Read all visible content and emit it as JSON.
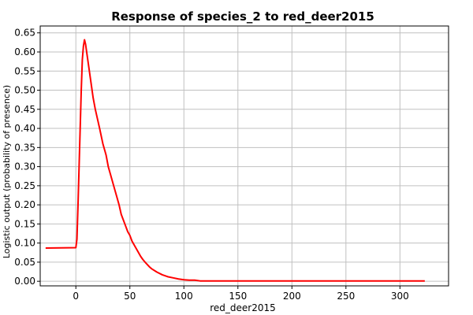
{
  "chart_data": {
    "type": "line",
    "title": "Response of species_2 to red_deer2015",
    "xlabel": "red_deer2015",
    "ylabel": "Logistic output (probability of presence)",
    "xlim": [
      -33,
      345
    ],
    "ylim": [
      -0.012,
      0.668
    ],
    "xticks": [
      0,
      50,
      100,
      150,
      200,
      250,
      300
    ],
    "yticks": [
      0.0,
      0.05,
      0.1,
      0.15,
      0.2,
      0.25,
      0.3,
      0.35,
      0.4,
      0.45,
      0.5,
      0.55,
      0.6,
      0.65
    ],
    "grid": true,
    "series": [
      {
        "color": "#ff0000",
        "x": [
          -28,
          0,
          1,
          2,
          3,
          4,
          5,
          6,
          7,
          8,
          9,
          10,
          12,
          14,
          16,
          18,
          20,
          22,
          25,
          28,
          30,
          32,
          35,
          38,
          40,
          42,
          44,
          46,
          48,
          50,
          52,
          55,
          58,
          60,
          62,
          65,
          68,
          70,
          75,
          80,
          85,
          90,
          95,
          100,
          105,
          110,
          115,
          120,
          150,
          200,
          250,
          300,
          323
        ],
        "y": [
          0.087,
          0.088,
          0.11,
          0.2,
          0.3,
          0.4,
          0.5,
          0.58,
          0.615,
          0.632,
          0.62,
          0.6,
          0.56,
          0.52,
          0.48,
          0.45,
          0.425,
          0.4,
          0.36,
          0.33,
          0.3,
          0.28,
          0.25,
          0.22,
          0.2,
          0.175,
          0.16,
          0.145,
          0.13,
          0.12,
          0.105,
          0.09,
          0.075,
          0.065,
          0.057,
          0.047,
          0.038,
          0.033,
          0.024,
          0.017,
          0.012,
          0.009,
          0.006,
          0.004,
          0.003,
          0.003,
          0.001,
          0.001,
          0.001,
          0.001,
          0.001,
          0.001,
          0.001
        ]
      }
    ]
  }
}
